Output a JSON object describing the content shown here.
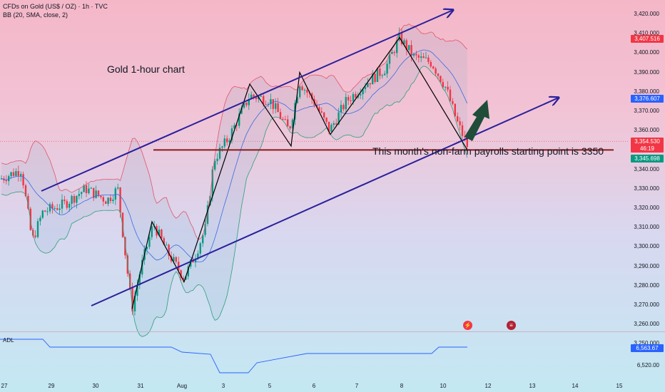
{
  "header": {
    "symbol_line": "CFDs on Gold (US$ / OZ) · 1h · TVC",
    "indicator_line": "BB (20, SMA, close, 2)"
  },
  "chart": {
    "title": "Gold 1-hour chart",
    "annotation": "This month's non-farm payrolls starting point is 3350"
  },
  "price_axis": {
    "labels": [
      "3,420.000",
      "3,410.000",
      "3,400.000",
      "3,390.000",
      "3,380.000",
      "3,370.000",
      "3,360.000",
      "3,350.000",
      "3,340.000",
      "3,330.000",
      "3,320.000",
      "3,310.000",
      "3,300.000",
      "3,290.000",
      "3,280.000",
      "3,270.000",
      "3,260.000",
      "3,250.000"
    ]
  },
  "price_tags": {
    "upper_band": {
      "text": "3,407.516",
      "color": "#f23645"
    },
    "middle_band": {
      "text": "3,376.607",
      "color": "#2962ff"
    },
    "last_price": {
      "text": "3,354.530",
      "color": "#f23645"
    },
    "countdown": {
      "text": "46:19",
      "color": "#f23645"
    },
    "lower_band": {
      "text": "3,345.698",
      "color": "#089981"
    }
  },
  "time_axis": {
    "labels": [
      "27",
      "29",
      "30",
      "31",
      "Aug",
      "3",
      "5",
      "6",
      "7",
      "8",
      "10",
      "12",
      "13",
      "14",
      "15"
    ]
  },
  "adl": {
    "label": "ADL",
    "tags": [
      {
        "text": "6,563.67",
        "color": "#2962ff"
      }
    ],
    "axis_label": "6,520.00"
  },
  "events": [
    {
      "icon": "lightning-icon",
      "symbol": "⚡",
      "color": "#f23645"
    },
    {
      "icon": "us-flag-icon",
      "symbol": "≡",
      "color": "#b22234"
    }
  ],
  "colors": {
    "channel": "#2a1f9c",
    "support": "#8b1a1a",
    "upper_band": "#e0566a",
    "lower_band": "#2e9e7a",
    "middle_band": "#3b6ae0",
    "candle_up": "#089981",
    "candle_down": "#f23645",
    "arrow_up": "#1f4d3a"
  }
}
